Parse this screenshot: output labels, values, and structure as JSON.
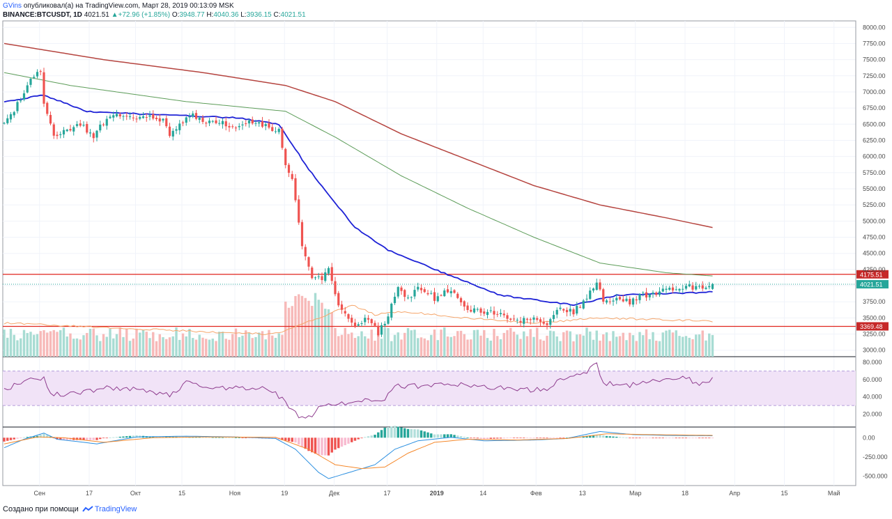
{
  "header": {
    "user": "GVins",
    "published_text": "опубликовал(а) на TradingView.com, Март 28, 2019 00:13:09 MSK",
    "symbol": "BINANCE:BTCUSDT, 1D",
    "last": "4021.51",
    "change": "+72.96 (+1.85%)",
    "o_label": "O:",
    "o_value": "3948.77",
    "h_label": "H:",
    "h_value": "4040.36",
    "l_label": "L:",
    "l_value": "3936.15",
    "c_label": "C:",
    "c_value": "4021.51"
  },
  "footer": {
    "created_with": "Создано при помощи",
    "brand": "TradingView"
  },
  "colors": {
    "up": "#26a69a",
    "down": "#ef5350",
    "ma_blue": "#1e22d6",
    "ma_green": "#5c9c58",
    "ma_red": "#b5443f",
    "level_line": "#e0251e",
    "rsi_line": "#8e3c8e",
    "rsi_band": "#f1e3f7",
    "macd_line": "#2b8fe0",
    "signal_line": "#f5882a",
    "bb_line": "#f5a56a"
  },
  "chart_data": [
    {
      "type": "candlestick",
      "title": "BINANCE:BTCUSDT, 1D",
      "ylim": [
        2900,
        8100
      ],
      "y_ticks": [
        "8000.00",
        "7750.00",
        "7500.00",
        "7250.00",
        "7000.00",
        "6750.00",
        "6500.00",
        "6250.00",
        "6000.00",
        "5750.00",
        "5500.00",
        "5250.00",
        "5000.00",
        "4750.00",
        "4500.00",
        "4250.00",
        "4000.00",
        "3750.00",
        "3500.00",
        "3250.00",
        "3000.00"
      ],
      "x_ticks": [
        "Сен",
        "17",
        "Окт",
        "15",
        "Ноя",
        "19",
        "Дек",
        "17",
        "2019",
        "14",
        "Фев",
        "13",
        "Мар",
        "18",
        "Апр",
        "15",
        "Май"
      ],
      "levels": [
        {
          "name": "resistance",
          "value": 4175.51,
          "label": "4175.51"
        },
        {
          "name": "support",
          "value": 3369.48,
          "label": "3369.48"
        }
      ],
      "last_price_label": "4021.51",
      "close_anchors": [
        [
          0,
          6500
        ],
        [
          4,
          6800
        ],
        [
          9,
          7250
        ],
        [
          11,
          7300
        ],
        [
          12,
          6800
        ],
        [
          15,
          6300
        ],
        [
          18,
          6400
        ],
        [
          23,
          6500
        ],
        [
          27,
          6300
        ],
        [
          31,
          6600
        ],
        [
          35,
          6650
        ],
        [
          40,
          6600
        ],
        [
          44,
          6650
        ],
        [
          48,
          6550
        ],
        [
          50,
          6300
        ],
        [
          53,
          6500
        ],
        [
          56,
          6650
        ],
        [
          60,
          6550
        ],
        [
          65,
          6550
        ],
        [
          70,
          6450
        ],
        [
          74,
          6550
        ],
        [
          77,
          6500
        ],
        [
          80,
          6450
        ],
        [
          83,
          6400
        ],
        [
          85,
          5850
        ],
        [
          87,
          5650
        ],
        [
          90,
          4600
        ],
        [
          93,
          4100
        ],
        [
          96,
          4100
        ],
        [
          98,
          4300
        ],
        [
          101,
          3700
        ],
        [
          104,
          3450
        ],
        [
          107,
          3400
        ],
        [
          110,
          3500
        ],
        [
          113,
          3250
        ],
        [
          116,
          3550
        ],
        [
          119,
          3950
        ],
        [
          122,
          3800
        ],
        [
          125,
          4000
        ],
        [
          130,
          3800
        ],
        [
          135,
          3950
        ],
        [
          140,
          3650
        ],
        [
          145,
          3600
        ],
        [
          150,
          3550
        ],
        [
          155,
          3450
        ],
        [
          160,
          3500
        ],
        [
          164,
          3400
        ],
        [
          168,
          3650
        ],
        [
          172,
          3600
        ],
        [
          176,
          3800
        ],
        [
          179,
          4050
        ],
        [
          181,
          3750
        ],
        [
          186,
          3800
        ],
        [
          189,
          3750
        ],
        [
          193,
          3850
        ],
        [
          198,
          3900
        ],
        [
          202,
          3950
        ],
        [
          206,
          4000
        ],
        [
          210,
          3950
        ],
        [
          214,
          4021.51
        ]
      ],
      "moving_averages": [
        {
          "name": "MA blue",
          "points": [
            [
              0,
              6850
            ],
            [
              12,
              6950
            ],
            [
              25,
              6700
            ],
            [
              45,
              6650
            ],
            [
              70,
              6600
            ],
            [
              83,
              6500
            ],
            [
              92,
              5800
            ],
            [
              106,
              4900
            ],
            [
              116,
              4550
            ],
            [
              135,
              4150
            ],
            [
              150,
              3850
            ],
            [
              172,
              3700
            ],
            [
              185,
              3850
            ],
            [
              200,
              3880
            ],
            [
              214,
              3900
            ]
          ]
        },
        {
          "name": "MA green",
          "points": [
            [
              0,
              7300
            ],
            [
              20,
              7100
            ],
            [
              55,
              6850
            ],
            [
              85,
              6700
            ],
            [
              100,
              6300
            ],
            [
              120,
              5700
            ],
            [
              140,
              5200
            ],
            [
              160,
              4750
            ],
            [
              180,
              4350
            ],
            [
              200,
              4200
            ],
            [
              214,
              4150
            ]
          ]
        },
        {
          "name": "MA red",
          "points": [
            [
              0,
              7750
            ],
            [
              30,
              7500
            ],
            [
              60,
              7300
            ],
            [
              85,
              7100
            ],
            [
              100,
              6850
            ],
            [
              120,
              6350
            ],
            [
              140,
              5950
            ],
            [
              160,
              5550
            ],
            [
              180,
              5250
            ],
            [
              200,
              5050
            ],
            [
              214,
              4900
            ]
          ]
        }
      ],
      "volume": "histogram below price, colored by candle direction"
    },
    {
      "type": "line",
      "title": "RSI",
      "ylim": [
        5,
        85
      ],
      "y_ticks": [
        "80.000",
        "60.000",
        "40.000",
        "20.000"
      ],
      "band": [
        30,
        70
      ],
      "points": [
        [
          0,
          48
        ],
        [
          5,
          57
        ],
        [
          12,
          62
        ],
        [
          14,
          42
        ],
        [
          20,
          44
        ],
        [
          30,
          50
        ],
        [
          40,
          50
        ],
        [
          50,
          42
        ],
        [
          55,
          57
        ],
        [
          60,
          52
        ],
        [
          70,
          50
        ],
        [
          80,
          50
        ],
        [
          84,
          38
        ],
        [
          87,
          23
        ],
        [
          90,
          15
        ],
        [
          93,
          18
        ],
        [
          96,
          30
        ],
        [
          100,
          31
        ],
        [
          110,
          36
        ],
        [
          115,
          38
        ],
        [
          118,
          55
        ],
        [
          122,
          52
        ],
        [
          130,
          54
        ],
        [
          135,
          56
        ],
        [
          140,
          52
        ],
        [
          150,
          50
        ],
        [
          160,
          48
        ],
        [
          165,
          50
        ],
        [
          168,
          60
        ],
        [
          172,
          62
        ],
        [
          176,
          70
        ],
        [
          179,
          78
        ],
        [
          181,
          56
        ],
        [
          186,
          55
        ],
        [
          189,
          53
        ],
        [
          193,
          56
        ],
        [
          198,
          59
        ],
        [
          203,
          63
        ],
        [
          206,
          61
        ],
        [
          210,
          56
        ],
        [
          214,
          60
        ]
      ]
    },
    {
      "type": "line",
      "title": "MACD",
      "ylim": [
        -620,
        120
      ],
      "y_ticks": [
        "0.00",
        "-250.000",
        "-500.000"
      ],
      "macd": [
        [
          0,
          -130
        ],
        [
          6,
          -20
        ],
        [
          12,
          60
        ],
        [
          16,
          -20
        ],
        [
          28,
          -80
        ],
        [
          40,
          10
        ],
        [
          55,
          20
        ],
        [
          70,
          10
        ],
        [
          82,
          -10
        ],
        [
          88,
          -150
        ],
        [
          95,
          -450
        ],
        [
          98,
          -530
        ],
        [
          105,
          -440
        ],
        [
          112,
          -350
        ],
        [
          118,
          -150
        ],
        [
          125,
          -40
        ],
        [
          135,
          5
        ],
        [
          145,
          -40
        ],
        [
          160,
          -30
        ],
        [
          170,
          -10
        ],
        [
          180,
          80
        ],
        [
          190,
          40
        ],
        [
          200,
          30
        ],
        [
          214,
          25
        ]
      ],
      "signal": [
        [
          0,
          -80
        ],
        [
          10,
          10
        ],
        [
          18,
          0
        ],
        [
          30,
          -60
        ],
        [
          45,
          0
        ],
        [
          60,
          10
        ],
        [
          82,
          5
        ],
        [
          92,
          -150
        ],
        [
          100,
          -350
        ],
        [
          108,
          -400
        ],
        [
          115,
          -380
        ],
        [
          122,
          -200
        ],
        [
          130,
          -60
        ],
        [
          140,
          -20
        ],
        [
          155,
          -30
        ],
        [
          170,
          -10
        ],
        [
          182,
          50
        ],
        [
          195,
          40
        ],
        [
          214,
          30
        ]
      ]
    }
  ]
}
